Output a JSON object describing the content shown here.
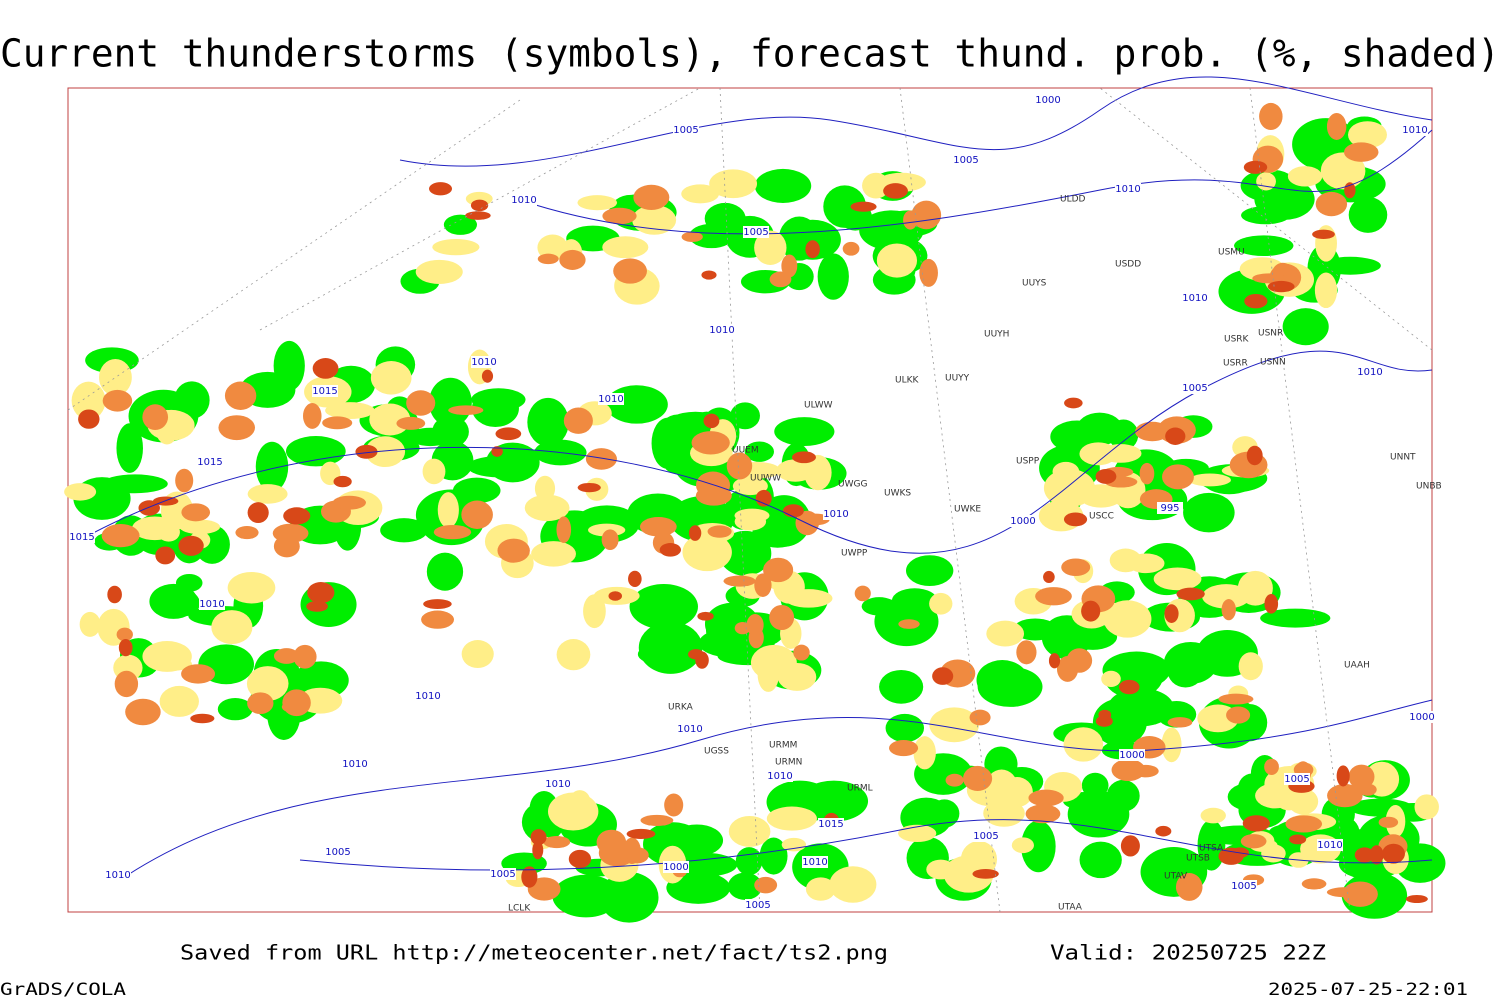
{
  "header": {
    "title": "Current thunderstorms (symbols), forecast thund. prob. (%, shaded)"
  },
  "isobar_labels": [
    "1000",
    "1005",
    "1010",
    "1005",
    "1010",
    "1010",
    "1005",
    "1010",
    "1010",
    "1010",
    "1010",
    "1015",
    "1005",
    "1010",
    "1015",
    "1010",
    "995",
    "1000",
    "1015",
    "1010",
    "1010",
    "1010",
    "1000",
    "1010",
    "1010",
    "1010",
    "1005",
    "1015",
    "1005",
    "1005",
    "1010",
    "1000",
    "1010",
    "1010",
    "1005",
    "1005",
    "1005",
    "1000"
  ],
  "station_labels": [
    "ULDD",
    "USDD",
    "USMU",
    "UUYS",
    "UUYH",
    "USRK",
    "USNR",
    "USRR",
    "USNN",
    "ULKK",
    "UUYY",
    "ULWW",
    "UUEM",
    "UUWW",
    "UWGG",
    "UWKS",
    "UWKE",
    "UWPP",
    "UNNT",
    "UNBB",
    "USCC",
    "USPP",
    "UAAH",
    "UTSA",
    "UTAV",
    "UTSB",
    "URML",
    "URMM",
    "URMN",
    "UGSS",
    "URKA",
    "UTAA",
    "LCLK"
  ],
  "footer": {
    "source": "Saved from URL http://meteocenter.net/fact/ts2.png",
    "valid": "Valid: 20250725 22Z",
    "software": "GrADS/COLA",
    "timestamp": "2025-07-25-22:01"
  }
}
